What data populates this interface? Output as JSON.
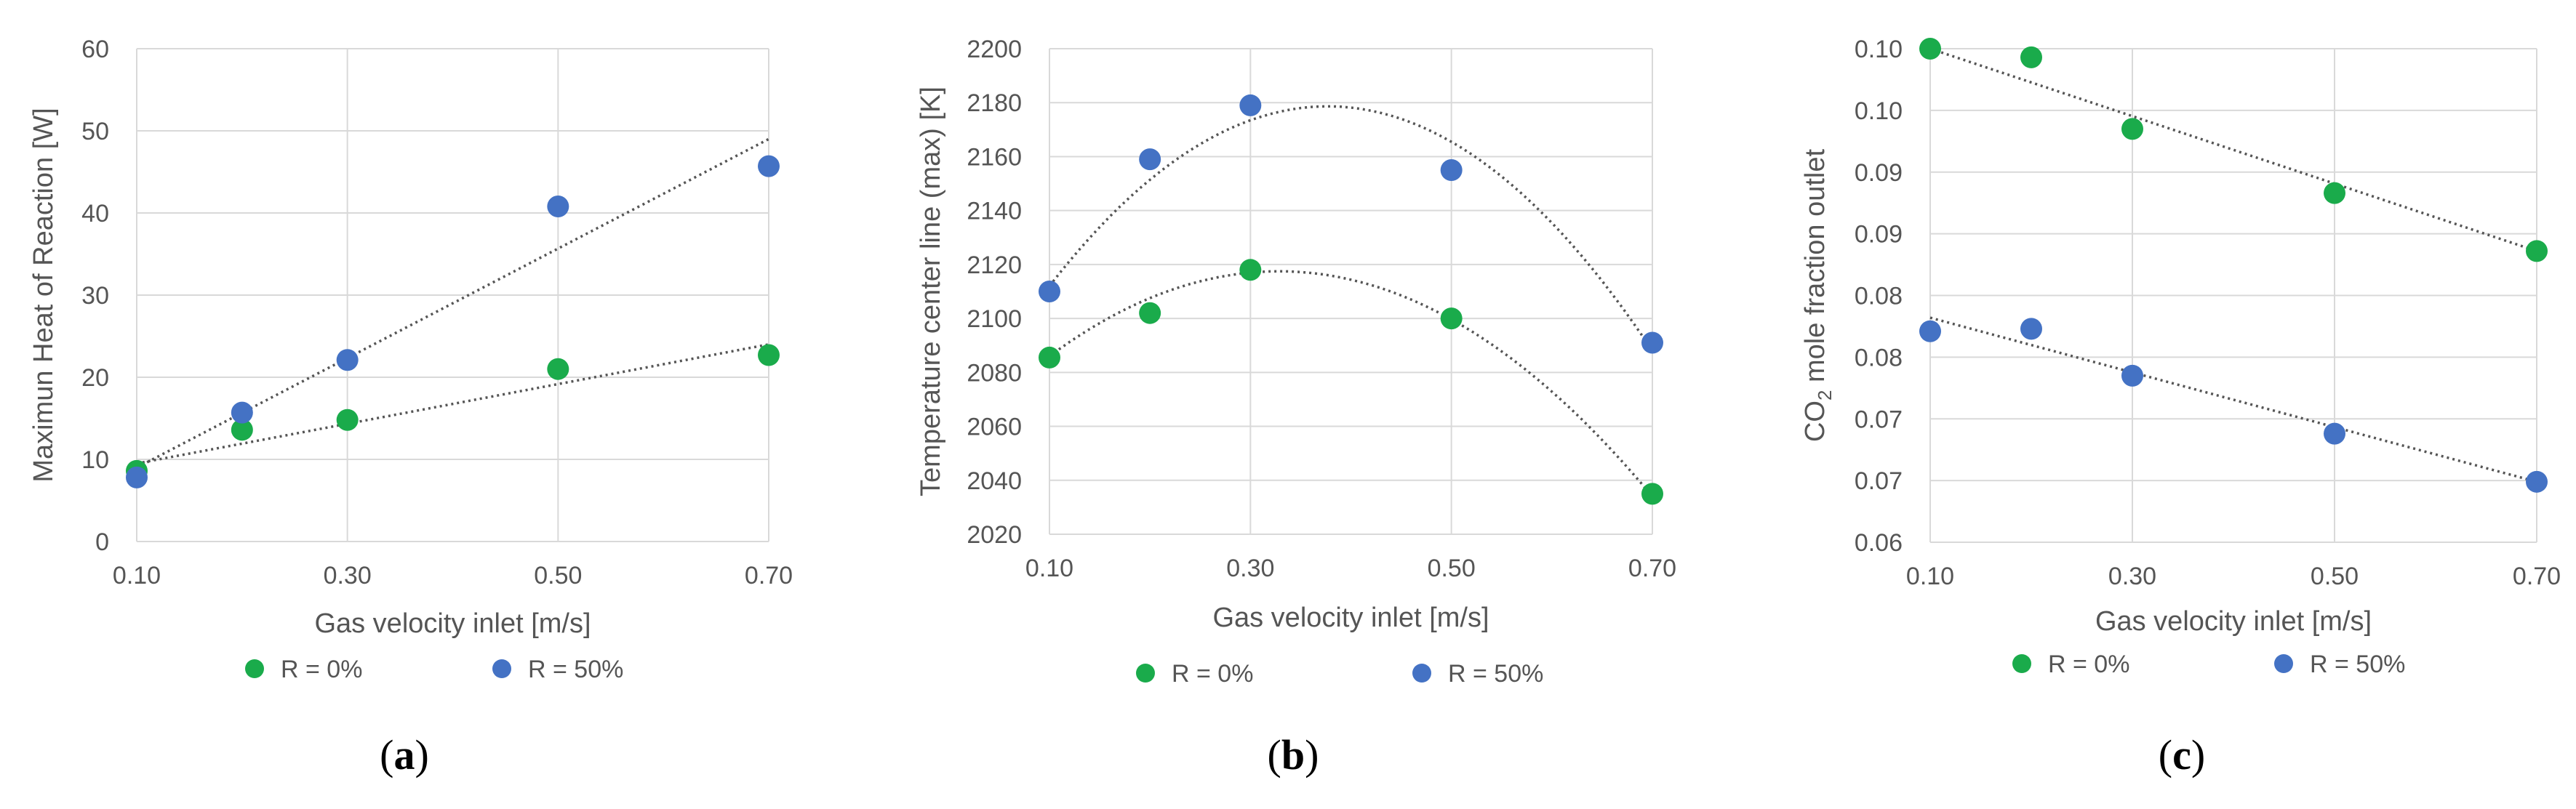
{
  "chart_data": [
    {
      "type": "scatter",
      "panel_label": "(a)",
      "panel_letter": "a",
      "xlabel": "Gas velocity inlet [m/s]",
      "ylabel": "Maximun Heat of Reaction [W]",
      "xlim": [
        0.1,
        0.7
      ],
      "ylim": [
        0,
        60
      ],
      "xticks": [
        "0.10",
        "0.30",
        "0.50",
        "0.70"
      ],
      "yticks": [
        "0",
        "10",
        "20",
        "30",
        "40",
        "50",
        "60"
      ],
      "grid": true,
      "legend_position": "bottom",
      "series": [
        {
          "name": "R = 0%",
          "color": "#1aab4b",
          "x": [
            0.1,
            0.2,
            0.3,
            0.5,
            0.7
          ],
          "y": [
            8.6,
            13.6,
            14.8,
            21.0,
            22.7
          ]
        },
        {
          "name": "R = 50%",
          "color": "#4472c4",
          "x": [
            0.1,
            0.2,
            0.3,
            0.5,
            0.7
          ],
          "y": [
            7.8,
            15.7,
            22.1,
            40.8,
            45.7
          ]
        }
      ],
      "trendlines": [
        {
          "kind": "linear",
          "x": [
            0.1,
            0.7
          ],
          "y": [
            9.5,
            24.0
          ]
        },
        {
          "kind": "linear",
          "x": [
            0.1,
            0.7
          ],
          "y": [
            9.0,
            49.0
          ]
        }
      ]
    },
    {
      "type": "scatter",
      "panel_label": "(b)",
      "panel_letter": "b",
      "xlabel": "Gas velocity inlet [m/s]",
      "ylabel": "Temperature center line (max) [K]",
      "xlim": [
        0.1,
        0.7
      ],
      "ylim": [
        2020,
        2200
      ],
      "xticks": [
        "0.10",
        "0.30",
        "0.50",
        "0.70"
      ],
      "yticks": [
        "2020",
        "2040",
        "2060",
        "2080",
        "2100",
        "2120",
        "2140",
        "2160",
        "2180",
        "2200"
      ],
      "grid": true,
      "legend_position": "bottom",
      "series": [
        {
          "name": "R = 0%",
          "color": "#1aab4b",
          "x": [
            0.1,
            0.2,
            0.3,
            0.5,
            0.7
          ],
          "y": [
            2085.5,
            2102,
            2118,
            2100,
            2035
          ]
        },
        {
          "name": "R = 50%",
          "color": "#4472c4",
          "x": [
            0.1,
            0.2,
            0.3,
            0.5,
            0.7
          ],
          "y": [
            2110,
            2159,
            2179,
            2155,
            2091
          ]
        }
      ],
      "trendlines": [
        {
          "kind": "quadratic",
          "x": [
            0.1,
            0.3,
            0.7
          ],
          "y": [
            2086,
            2117,
            2034
          ]
        },
        {
          "kind": "quadratic",
          "x": [
            0.1,
            0.35,
            0.7
          ],
          "y": [
            2112,
            2178,
            2088
          ]
        }
      ]
    },
    {
      "type": "scatter",
      "panel_label": "(c)",
      "panel_letter": "c",
      "xlabel": "Gas velocity inlet [m/s]",
      "ylabel": "CO2 mole fraction outlet",
      "ylabel_prefix": "CO",
      "ylabel_subscript": "2",
      "ylabel_suffix": " mole fraction outlet",
      "xlim": [
        0.1,
        0.7
      ],
      "ylim": [
        0.06,
        0.1
      ],
      "xticks": [
        "0.10",
        "0.30",
        "0.50",
        "0.70"
      ],
      "yticks": [
        "0.06",
        "0.07",
        "0.07",
        "0.08",
        "0.08",
        "0.09",
        "0.09",
        "0.10",
        "0.10"
      ],
      "grid": true,
      "legend_position": "bottom",
      "series": [
        {
          "name": "R = 0%",
          "color": "#1aab4b",
          "x": [
            0.1,
            0.2,
            0.3,
            0.5,
            0.7
          ],
          "y": [
            0.1,
            0.0993,
            0.0935,
            0.0883,
            0.0836
          ]
        },
        {
          "name": "R = 50%",
          "color": "#4472c4",
          "x": [
            0.1,
            0.2,
            0.3,
            0.5,
            0.7
          ],
          "y": [
            0.0771,
            0.0773,
            0.0735,
            0.0688,
            0.0649
          ]
        }
      ],
      "trendlines": [
        {
          "kind": "linear",
          "x": [
            0.1,
            0.7
          ],
          "y": [
            0.1,
            0.0836
          ]
        },
        {
          "kind": "linear",
          "x": [
            0.1,
            0.7
          ],
          "y": [
            0.0782,
            0.0649
          ]
        }
      ]
    }
  ]
}
